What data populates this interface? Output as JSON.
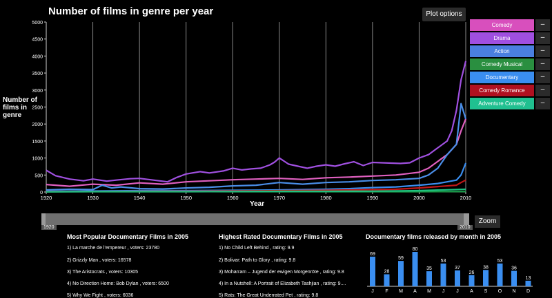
{
  "chart_data": {
    "type": "line",
    "title": "Number of films in genre per year",
    "xlabel": "Year",
    "ylabel": "Number of films in genre",
    "xlim": [
      1920,
      2010
    ],
    "ylim": [
      0,
      5000
    ],
    "xticks": [
      "1920",
      "1930",
      "1940",
      "1950",
      "1960",
      "1970",
      "1980",
      "1990",
      "2000",
      "2010"
    ],
    "yticks": [
      "0",
      "500",
      "1000",
      "1500",
      "2000",
      "2500",
      "3000",
      "3500",
      "4000",
      "4500",
      "5000"
    ],
    "vertical_gridlines": [
      1930,
      1940,
      1950,
      1960,
      1970,
      1980,
      1990,
      2000,
      2010
    ],
    "series": [
      {
        "name": "Drama",
        "color": "#a050e0",
        "x": [
          1920,
          1922,
          1925,
          1928,
          1930,
          1933,
          1935,
          1938,
          1940,
          1943,
          1946,
          1948,
          1950,
          1953,
          1955,
          1958,
          1960,
          1962,
          1964,
          1966,
          1968,
          1969,
          1970,
          1972,
          1974,
          1976,
          1978,
          1980,
          1982,
          1984,
          1986,
          1988,
          1990,
          1992,
          1994,
          1996,
          1998,
          2000,
          2002,
          2004,
          2006,
          2007,
          2008,
          2009,
          2010
        ],
        "y": [
          640,
          480,
          380,
          330,
          380,
          320,
          350,
          390,
          400,
          350,
          300,
          430,
          530,
          600,
          560,
          620,
          700,
          650,
          680,
          700,
          800,
          880,
          1000,
          820,
          760,
          700,
          760,
          800,
          760,
          830,
          890,
          780,
          870,
          860,
          850,
          840,
          860,
          1000,
          1100,
          1300,
          1500,
          1800,
          2400,
          3300,
          3850
        ]
      },
      {
        "name": "Comedy",
        "color": "#e060c0",
        "x": [
          1920,
          1925,
          1930,
          1935,
          1940,
          1945,
          1950,
          1955,
          1960,
          1965,
          1970,
          1975,
          1980,
          1985,
          1990,
          1995,
          2000,
          2002,
          2004,
          2006,
          2008,
          2009,
          2010
        ],
        "y": [
          220,
          170,
          230,
          200,
          270,
          230,
          300,
          330,
          360,
          380,
          400,
          370,
          420,
          440,
          470,
          500,
          580,
          700,
          900,
          1100,
          1400,
          1800,
          2150
        ]
      },
      {
        "name": "Action",
        "color": "#4a8ee8",
        "x": [
          1920,
          1925,
          1930,
          1932,
          1934,
          1936,
          1940,
          1945,
          1950,
          1955,
          1960,
          1965,
          1970,
          1975,
          1980,
          1985,
          1990,
          1995,
          2000,
          2002,
          2004,
          2006,
          2008,
          2009,
          2010
        ],
        "y": [
          60,
          80,
          70,
          200,
          120,
          150,
          100,
          90,
          120,
          140,
          180,
          200,
          280,
          230,
          280,
          300,
          340,
          360,
          400,
          500,
          700,
          1100,
          1400,
          2600,
          2150
        ]
      },
      {
        "name": "Comedy Musical",
        "color": "#1a9e4a",
        "x": [
          1920,
          1930,
          1940,
          1950,
          1960,
          1970,
          1980,
          1990,
          2000,
          2010
        ],
        "y": [
          10,
          15,
          20,
          15,
          10,
          10,
          10,
          10,
          10,
          15
        ]
      },
      {
        "name": "Documentary",
        "color": "#3a8ef0",
        "x": [
          1920,
          1930,
          1940,
          1950,
          1960,
          1970,
          1980,
          1985,
          1990,
          1995,
          2000,
          2004,
          2006,
          2008,
          2009,
          2010
        ],
        "y": [
          20,
          30,
          40,
          40,
          50,
          60,
          80,
          100,
          130,
          150,
          200,
          250,
          300,
          350,
          500,
          850
        ]
      },
      {
        "name": "Comedy Romance",
        "color": "#c01818",
        "x": [
          1920,
          1930,
          1940,
          1950,
          1960,
          1970,
          1980,
          1985,
          1990,
          1995,
          2000,
          2004,
          2008,
          2009,
          2010
        ],
        "y": [
          10,
          15,
          20,
          25,
          30,
          40,
          50,
          60,
          70,
          80,
          120,
          160,
          200,
          280,
          350
        ]
      },
      {
        "name": "Adventure Comedy",
        "color": "#20c080",
        "x": [
          1920,
          1930,
          1940,
          1950,
          1960,
          1970,
          1980,
          1990,
          2000,
          2010
        ],
        "y": [
          5,
          10,
          10,
          10,
          15,
          20,
          20,
          25,
          40,
          80
        ]
      }
    ]
  },
  "header": {
    "title": "Number of films in genre per year",
    "plot_options": "Plot options"
  },
  "axes": {
    "ylabel": "Number of films in genre",
    "xlabel": "Year"
  },
  "legend": [
    {
      "label": "Comedy",
      "color": "#d84fbd",
      "minus": "–"
    },
    {
      "label": "Drama",
      "color": "#a04fe0",
      "minus": "–"
    },
    {
      "label": "Action",
      "color": "#4a7fe0",
      "minus": "–"
    },
    {
      "label": "Comedy Musical",
      "color": "#2a8f40",
      "minus": "–"
    },
    {
      "label": "Documentary",
      "color": "#3a8ef0",
      "minus": "–"
    },
    {
      "label": "Comedy Romance",
      "color": "#b01020",
      "minus": "–"
    },
    {
      "label": "Adventure Comedy",
      "color": "#20c090",
      "minus": "–"
    }
  ],
  "zoom": {
    "start_label": "1920",
    "end_label": "2010",
    "button": "Zoom"
  },
  "popular": {
    "title": "Most Popular Documentary Films in 2005",
    "items": [
      "1) La marche de l'empereur , voters: 23780",
      "2) Grizzly Man , voters: 16578",
      "3) The Aristocrats , voters: 10305",
      "4) No Direction Home: Bob Dylan , voters: 6500",
      "5) Why We Fight , voters: 6036"
    ]
  },
  "rated": {
    "title": "Highest Rated Documentary Films in 2005",
    "items": [
      "1) No Child Left Behind , rating: 9.9",
      "2) Bolivar: Path to Glory , rating: 9.8",
      "3) Moharram – Jugend der ewigen Morgenröte , rating: 9.8",
      "4) In a Nutshell: A Portrait of Elizabeth Tashjian , rating: 9....",
      "5) Rats: The Great Underrated Pet , rating: 9.8"
    ]
  },
  "monthly": {
    "title": "Documentary films released by month in 2005",
    "chart_data": {
      "type": "bar",
      "categories": [
        "J",
        "F",
        "M",
        "A",
        "M",
        "J",
        "J",
        "A",
        "S",
        "O",
        "N",
        "D"
      ],
      "values": [
        69,
        28,
        59,
        80,
        35,
        53,
        37,
        26,
        38,
        53,
        36,
        13
      ],
      "color": "#3a8ef0"
    }
  }
}
